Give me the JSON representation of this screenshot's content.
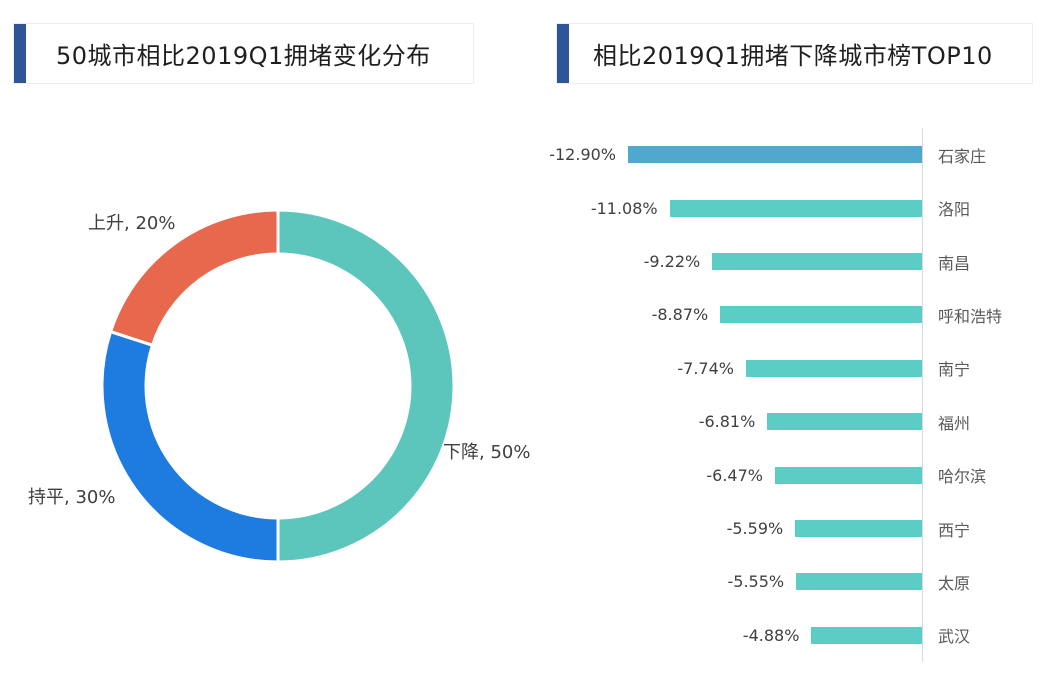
{
  "page": {
    "background": "#ffffff",
    "accent_color": "#2f5597"
  },
  "left_panel": {
    "title": "50城市相比2019Q1拥堵变化分布"
  },
  "right_panel": {
    "title": "相比2019Q1拥堵下降城市榜TOP10"
  },
  "chart_data": [
    {
      "type": "pie",
      "subtype": "donut",
      "title": "50城市相比2019Q1拥堵变化分布",
      "labels": [
        "下降",
        "持平",
        "上升"
      ],
      "values": [
        50,
        30,
        20
      ],
      "unit": "%",
      "label_texts": [
        "下降, 50%",
        "持平, 30%",
        "上升, 20%"
      ],
      "colors": [
        "#5cc6bc",
        "#1e7ce0",
        "#e8684d"
      ],
      "start_angle_deg": 0,
      "direction": "clockwise",
      "separator_color": "#ffffff",
      "legend_position": "outside-labels"
    },
    {
      "type": "bar",
      "orientation": "horizontal",
      "title": "相比2019Q1拥堵下降城市榜TOP10",
      "categories": [
        "石家庄",
        "洛阳",
        "南昌",
        "呼和浩特",
        "南宁",
        "福州",
        "哈尔滨",
        "西宁",
        "太原",
        "武汉"
      ],
      "values": [
        -12.9,
        -11.08,
        -9.22,
        -8.87,
        -7.74,
        -6.81,
        -6.47,
        -5.59,
        -5.55,
        -4.88
      ],
      "value_labels": [
        "-12.90%",
        "-11.08%",
        "-9.22%",
        "-8.87%",
        "-7.74%",
        "-6.81%",
        "-6.47%",
        "-5.59%",
        "-5.55%",
        "-4.88%"
      ],
      "bar_colors": [
        "#4fa8ce",
        "#5ccdc4",
        "#5ccdc4",
        "#5ccdc4",
        "#5ccdc4",
        "#5ccdc4",
        "#5ccdc4",
        "#5ccdc4",
        "#5ccdc4",
        "#5ccdc4"
      ],
      "xlim": [
        -12.9,
        0
      ],
      "axis_color": "#d9d9d9",
      "value_label_color": "#404040",
      "category_label_color": "#595959",
      "grid": false
    }
  ]
}
